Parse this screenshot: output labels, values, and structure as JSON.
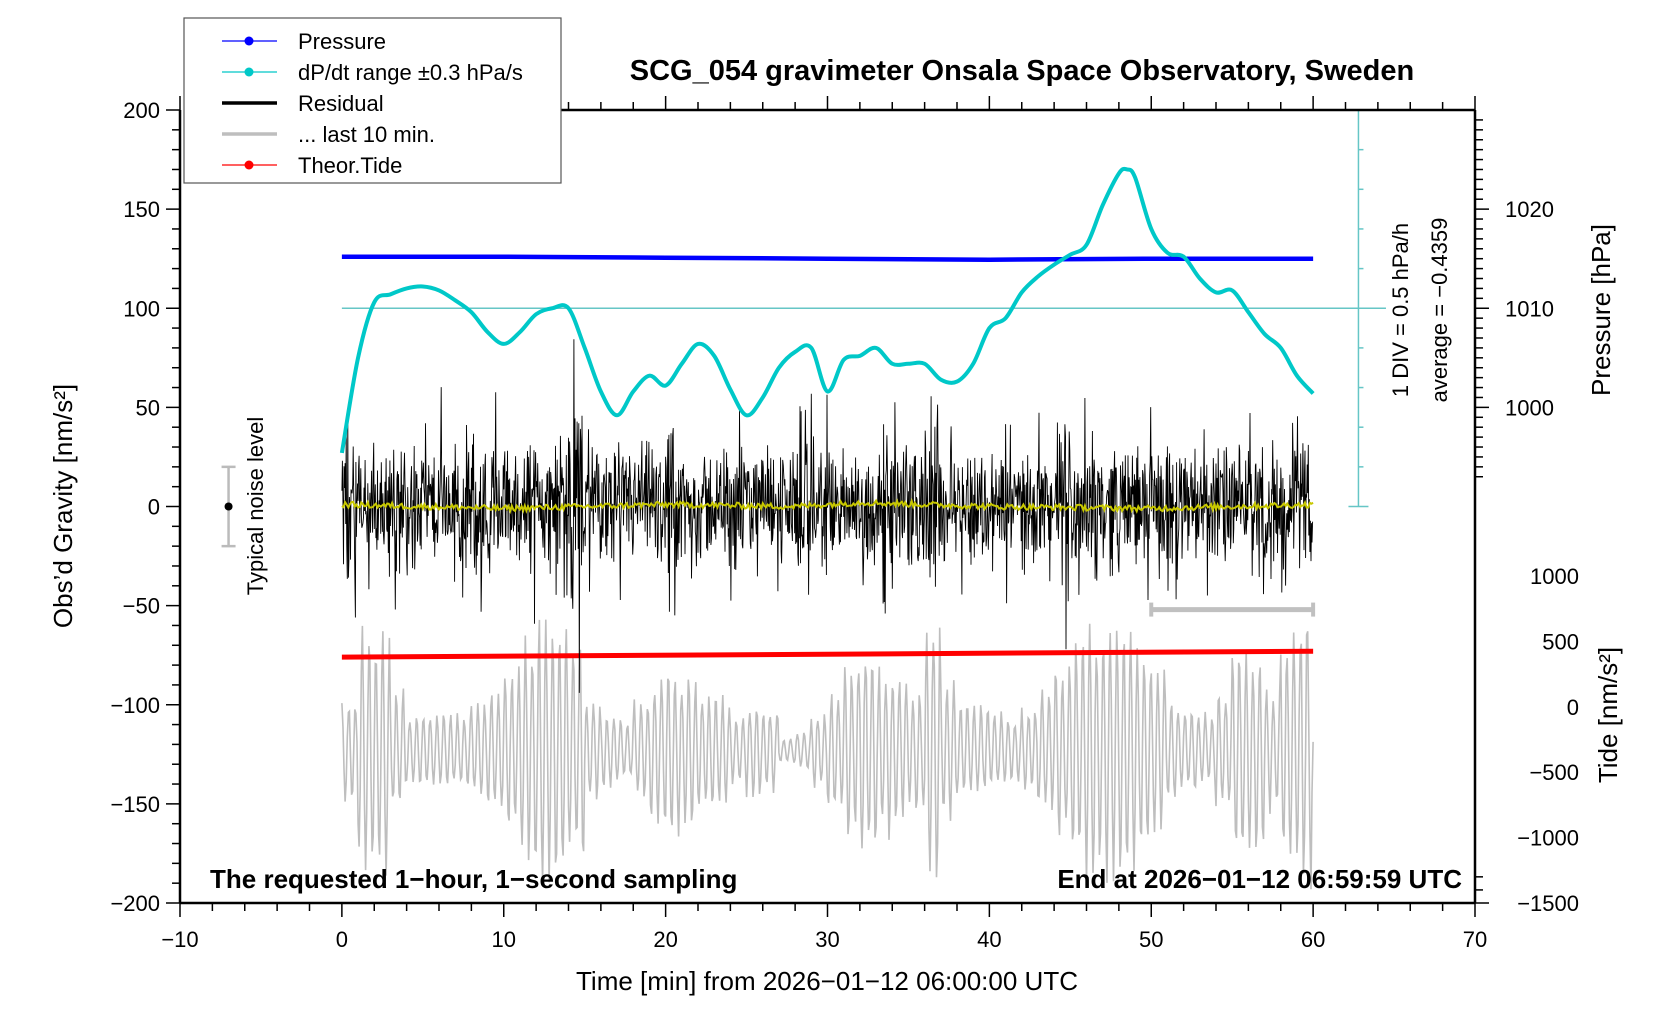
{
  "chart_data": {
    "type": "line",
    "title": "SCG_054 gravimeter Onsala Space Observatory, Sweden",
    "xlabel": "Time [min] from 2026−01−12 06:00:00 UTC",
    "ylabel": "Obs’d Gravity [nm/s²]",
    "ylabel_right_top": "Pressure [hPa]",
    "ylabel_right_bottom": "Tide [nm/s²]",
    "xlim": [
      -10,
      70
    ],
    "ylim": [
      -200,
      200
    ],
    "x_ticks": [
      "−10",
      "0",
      "10",
      "20",
      "30",
      "40",
      "50",
      "60",
      "70"
    ],
    "x_tick_values": [
      -10,
      0,
      10,
      20,
      30,
      40,
      50,
      60,
      70
    ],
    "y_ticks": [
      "200",
      "150",
      "100",
      "50",
      "0",
      "−50",
      "−100",
      "−150",
      "−200"
    ],
    "y_tick_values": [
      200,
      150,
      100,
      50,
      0,
      -50,
      -100,
      -150,
      -200
    ],
    "pressure_ticks": [
      "1020",
      "1010",
      "1000"
    ],
    "pressure_tick_values": [
      1020,
      1010,
      1000
    ],
    "tide_ticks": [
      "1000",
      "500",
      "0",
      "−500",
      "−1000",
      "−1500"
    ],
    "tide_tick_values": [
      1000,
      500,
      0,
      -500,
      -1000,
      -1500
    ],
    "annotation_left": "The requested 1−hour, 1−second sampling",
    "annotation_right": "End at 2026−01−12 06:59:59 UTC",
    "dpdt_scale_label": "1 DIV = 0.5 hPa/h",
    "dpdt_average_label": "average = −0.4359",
    "noise_label": "Typical noise level",
    "noise_level": {
      "x": -7,
      "center": 0,
      "halfwidth": 20
    },
    "last10_bar": {
      "x_start": 50,
      "x_end": 60,
      "y": -52
    },
    "legend": [
      {
        "label": "Pressure",
        "color": "#0000ff",
        "marker": "dot"
      },
      {
        "label": "dP/dt range ±0.3 hPa/s",
        "color": "#00c8c8",
        "marker": "dot"
      },
      {
        "label": "Residual",
        "color": "#000000",
        "marker": "line"
      },
      {
        "label": "... last 10 min.",
        "color": "#bebebe",
        "marker": "line"
      },
      {
        "label": "Theor.Tide",
        "color": "#ff0000",
        "marker": "dot"
      }
    ],
    "series": [
      {
        "name": "Pressure",
        "color": "#0000ff",
        "units": "hPa",
        "x": [
          0,
          10,
          20,
          30,
          40,
          50,
          60
        ],
        "values": [
          1015.2,
          1015.2,
          1015.1,
          1015.0,
          1014.9,
          1015.0,
          1015.0
        ]
      },
      {
        "name": "dP/dt",
        "color": "#00c8c8",
        "units": "gravity-axis units (1 DIV = 20 = 0.5 hPa/h, centred at 100)",
        "x": [
          0,
          1,
          2,
          3,
          4,
          5,
          6,
          7,
          8,
          9,
          10,
          11,
          12,
          13,
          14,
          15,
          16,
          17,
          18,
          19,
          20,
          21,
          22,
          23,
          24,
          25,
          26,
          27,
          28,
          29,
          30,
          31,
          32,
          33,
          34,
          35,
          36,
          37,
          38,
          39,
          40,
          41,
          42,
          43,
          44,
          45,
          46,
          47,
          48,
          48.5,
          49,
          50,
          51,
          52,
          53,
          54,
          55,
          56,
          57,
          58,
          59,
          60
        ],
        "values": [
          27,
          75,
          103,
          107,
          110,
          111,
          109,
          104,
          98,
          88,
          82,
          88,
          97,
          100,
          100,
          80,
          58,
          46,
          58,
          66,
          61,
          72,
          82,
          76,
          59,
          46,
          55,
          70,
          78,
          80,
          58,
          74,
          76,
          80,
          72,
          72,
          72,
          64,
          63,
          72,
          90,
          95,
          108,
          116,
          122,
          127,
          132,
          152,
          168,
          170,
          166,
          140,
          128,
          126,
          115,
          108,
          109,
          98,
          87,
          80,
          66,
          57
        ]
      },
      {
        "name": "Residual",
        "color": "#000000",
        "units": "nm/s²",
        "envelope_x_step_min": 1,
        "envelope_max": [
          65,
          58,
          45,
          50,
          55,
          48,
          62,
          45,
          52,
          60,
          45,
          50,
          55,
          62,
          98,
          45,
          55,
          50,
          45,
          58,
          60,
          62,
          45,
          48,
          52,
          45,
          55,
          50,
          52,
          58,
          50,
          55,
          62,
          48,
          55,
          52,
          86,
          45,
          52,
          50,
          60,
          45,
          50,
          55,
          62,
          58,
          62,
          55,
          48,
          52,
          50,
          60,
          55,
          45,
          52,
          45,
          55,
          55,
          45,
          50,
          28
        ],
        "envelope_min": [
          -60,
          -45,
          -40,
          -55,
          -48,
          -42,
          -45,
          -50,
          -58,
          -60,
          -45,
          -68,
          -42,
          -52,
          -97,
          -45,
          -50,
          -48,
          -55,
          -45,
          -60,
          -42,
          -45,
          -48,
          -50,
          -40,
          -45,
          -52,
          -48,
          -45,
          -42,
          -45,
          -40,
          -55,
          -45,
          -50,
          -93,
          -45,
          -48,
          -45,
          -42,
          -50,
          -45,
          -48,
          -75,
          -50,
          -48,
          -55,
          -45,
          -50,
          -52,
          -48,
          -45,
          -50,
          -52,
          -45,
          -50,
          -48,
          -45,
          -50,
          -55
        ]
      },
      {
        "name": "Residual smoothed",
        "color": "#c8c800",
        "units": "nm/s²",
        "x": [
          0,
          10,
          20,
          28,
          32,
          40,
          50,
          60
        ],
        "values": [
          1,
          -1,
          1,
          0,
          2,
          0,
          -1,
          1
        ]
      },
      {
        "name": "Theor.Tide",
        "color": "#ff0000",
        "units": "nm/s² (plotted on gravity axis)",
        "x": [
          0,
          60
        ],
        "values": [
          -76,
          -73
        ]
      },
      {
        "name": "Tide signal (gray)",
        "color": "#bebebe",
        "units": "nm/s² (right tide axis)",
        "amplitude_by_min": [
          400,
          1000,
          1000,
          500,
          300,
          300,
          300,
          300,
          400,
          500,
          700,
          900,
          1100,
          1050,
          900,
          400,
          300,
          250,
          400,
          600,
          700,
          600,
          500,
          450,
          300,
          400,
          350,
          100,
          150,
          300,
          500,
          700,
          900,
          700,
          600,
          500,
          1050,
          600,
          400,
          350,
          300,
          250,
          350,
          500,
          700,
          900,
          1050,
          1100,
          1050,
          900,
          700,
          400,
          350,
          300,
          500,
          900,
          800,
          500,
          1000,
          1100,
          100
        ],
        "period_min": 0.42
      }
    ]
  }
}
